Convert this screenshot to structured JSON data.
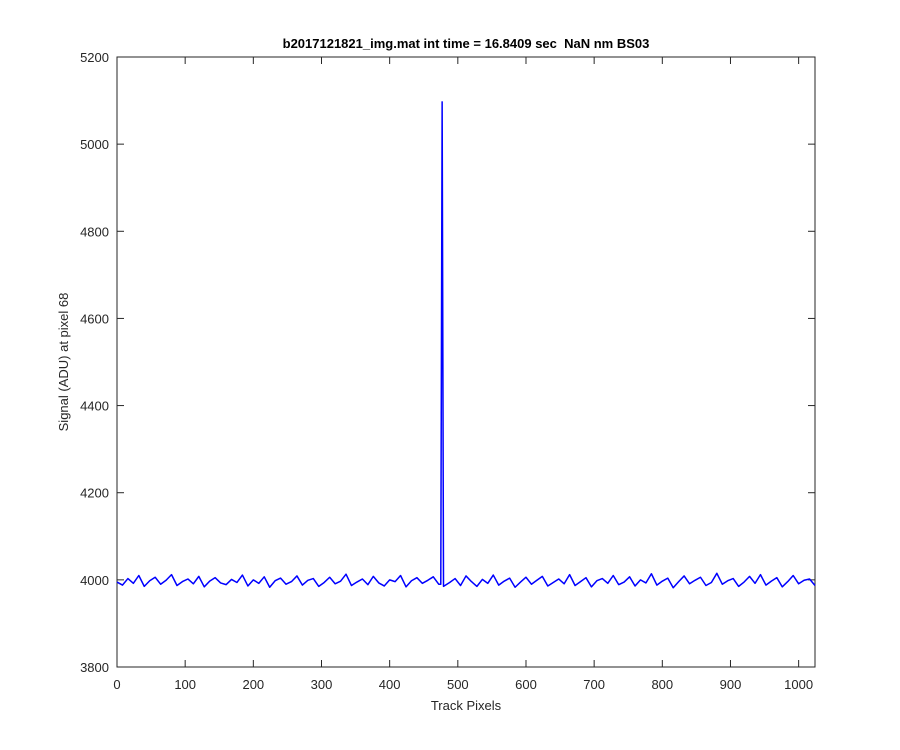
{
  "chart_data": {
    "type": "line",
    "title": "b2017121821_img.mat int time = 16.8409 sec  NaN nm BS03",
    "xlabel": "Track Pixels",
    "ylabel": "Signal (ADU) at pixel 68",
    "color": "#0000ff",
    "xlim": [
      0,
      1024
    ],
    "ylim": [
      3800,
      5200
    ],
    "xticks": [
      0,
      100,
      200,
      300,
      400,
      500,
      600,
      700,
      800,
      900,
      1000
    ],
    "yticks": [
      3800,
      4000,
      4200,
      4400,
      4600,
      4800,
      5000,
      5200
    ],
    "x": [
      0,
      8,
      16,
      24,
      32,
      40,
      48,
      56,
      64,
      72,
      80,
      88,
      96,
      104,
      112,
      120,
      128,
      136,
      144,
      152,
      160,
      168,
      176,
      184,
      192,
      200,
      208,
      216,
      224,
      232,
      240,
      248,
      256,
      264,
      272,
      280,
      288,
      296,
      304,
      312,
      320,
      328,
      336,
      344,
      352,
      360,
      368,
      376,
      384,
      392,
      400,
      408,
      416,
      424,
      432,
      440,
      448,
      456,
      464,
      472,
      475,
      477,
      479,
      488,
      496,
      504,
      512,
      520,
      528,
      536,
      544,
      552,
      560,
      568,
      576,
      584,
      592,
      600,
      608,
      616,
      624,
      632,
      640,
      648,
      656,
      664,
      672,
      680,
      688,
      696,
      704,
      712,
      720,
      728,
      736,
      744,
      752,
      760,
      768,
      776,
      784,
      792,
      800,
      808,
      816,
      824,
      832,
      840,
      848,
      856,
      864,
      872,
      880,
      888,
      896,
      904,
      912,
      920,
      928,
      936,
      944,
      952,
      960,
      968,
      976,
      984,
      992,
      1000,
      1008,
      1016,
      1024
    ],
    "values": [
      3995,
      3988,
      4003,
      3992,
      4010,
      3985,
      3998,
      4006,
      3990,
      3999,
      4012,
      3987,
      3996,
      4002,
      3991,
      4008,
      3984,
      3997,
      4005,
      3993,
      3989,
      4001,
      3994,
      4011,
      3986,
      4000,
      3992,
      4007,
      3983,
      3998,
      4004,
      3990,
      3996,
      4009,
      3988,
      3999,
      4003,
      3985,
      3994,
      4006,
      3991,
      3997,
      4013,
      3987,
      3995,
      4002,
      3989,
      4008,
      3993,
      3986,
      4000,
      3996,
      4010,
      3984,
      3998,
      4005,
      3992,
      3999,
      4007,
      3990,
      3990,
      5097,
      3985,
      3994,
      4003,
      3987,
      4009,
      3996,
      3985,
      4001,
      3992,
      4011,
      3988,
      3997,
      4004,
      3983,
      3995,
      4006,
      3990,
      3999,
      4008,
      3986,
      3994,
      4002,
      3991,
      4012,
      3987,
      3996,
      4005,
      3984,
      3998,
      4003,
      3992,
      4010,
      3989,
      3995,
      4007,
      3986,
      4000,
      3993,
      4014,
      3988,
      3997,
      4004,
      3982,
      3996,
      4009,
      3991,
      3999,
      4006,
      3987,
      3994,
      4015,
      3990,
      3998,
      4003,
      3985,
      3995,
      4008,
      3992,
      4012,
      3988,
      3997,
      4005,
      3984,
      3996,
      4010,
      3991,
      3999,
      4002,
      3987
    ]
  }
}
